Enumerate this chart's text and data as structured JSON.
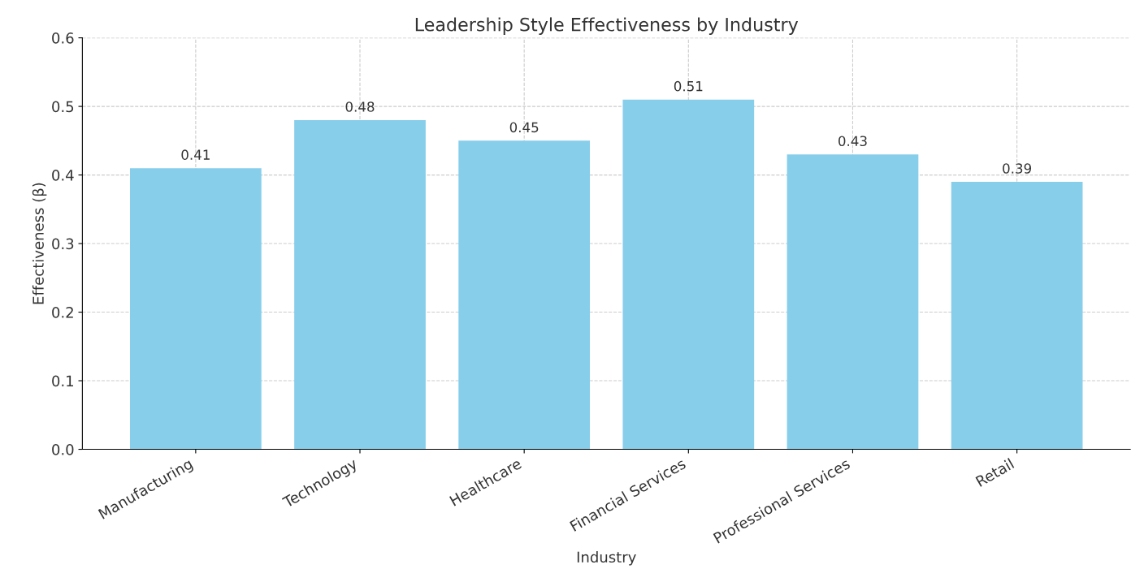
{
  "chart_data": {
    "type": "bar",
    "title": "Leadership Style Effectiveness by Industry",
    "xlabel": "Industry",
    "ylabel": "Effectiveness (β)",
    "categories": [
      "Manufacturing",
      "Technology",
      "Healthcare",
      "Financial Services",
      "Professional Services",
      "Retail"
    ],
    "values": [
      0.41,
      0.48,
      0.45,
      0.51,
      0.43,
      0.39
    ],
    "color": "#87ceeb",
    "ylim": [
      0,
      0.6
    ],
    "yticks": [
      {
        "value": 0,
        "label": "0.0"
      },
      0.1,
      0.2,
      0.3,
      0.4,
      0.5,
      0.6
    ],
    "grid": true,
    "data_labels": true
  }
}
